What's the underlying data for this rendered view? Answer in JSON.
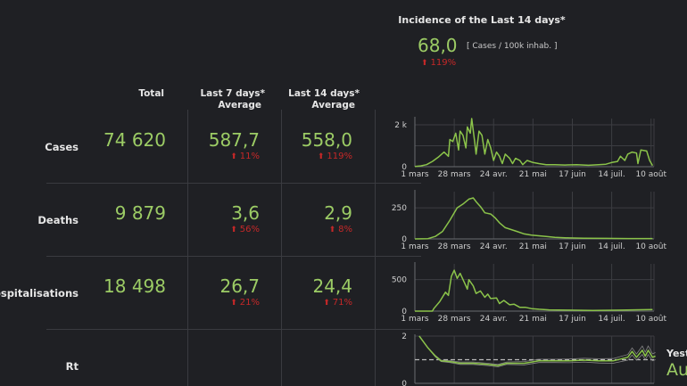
{
  "incidence": {
    "title": "Incidence of the Last 14 days*",
    "value": "68,0",
    "unit": "[ Cases / 100k inhab. ]",
    "change": "119%",
    "change_icon": "arrow-up-icon"
  },
  "headers": {
    "total": "Total",
    "last7_l1": "Last 7 days*",
    "last7_l2": "Average",
    "last14_l1": "Last 14 days*",
    "last14_l2": "Average"
  },
  "rows": [
    {
      "label": "Cases",
      "total": "74 620",
      "avg7": "587,7",
      "chg7": "11%",
      "avg14": "558,0",
      "chg14": "119%"
    },
    {
      "label": "Deaths",
      "total": "9 879",
      "avg7": "3,6",
      "chg7": "56%",
      "avg14": "2,9",
      "chg14": "8%"
    },
    {
      "label": "Hospitalisations",
      "total": "18 498",
      "avg7": "26,7",
      "chg7": "21%",
      "avg14": "24,4",
      "chg14": "71%"
    },
    {
      "label": "Rt"
    }
  ],
  "rt_side": {
    "label": "Yeste",
    "value": "Au"
  },
  "colors": {
    "background": "#1f2024",
    "value_green": "#9ccc65",
    "change_red": "#c62828",
    "line_green": "#8bc34a"
  },
  "chart_data": [
    {
      "type": "line",
      "id": "cases",
      "x_ticks": [
        "1 mars",
        "28 mars",
        "24 avr.",
        "21 mai",
        "17 juin",
        "14 juil.",
        "10 août"
      ],
      "y_ticks": [
        {
          "v": 0,
          "label": "0"
        },
        {
          "v": 2000,
          "label": "2 k"
        }
      ],
      "ylim": [
        0,
        2300
      ],
      "grid": true,
      "x": [
        "03-01",
        "03-05",
        "03-09",
        "03-13",
        "03-17",
        "03-21",
        "03-24",
        "03-25",
        "03-27",
        "03-29",
        "03-31",
        "04-01",
        "04-03",
        "04-05",
        "04-06",
        "04-08",
        "04-09",
        "04-11",
        "04-12",
        "04-14",
        "04-16",
        "04-18",
        "04-20",
        "04-22",
        "04-24",
        "04-26",
        "04-28",
        "04-30",
        "05-02",
        "05-05",
        "05-07",
        "05-09",
        "05-12",
        "05-14",
        "05-17",
        "05-21",
        "05-25",
        "05-30",
        "06-05",
        "06-12",
        "06-20",
        "06-28",
        "07-05",
        "07-10",
        "07-14",
        "07-18",
        "07-20",
        "07-23",
        "07-25",
        "07-28",
        "07-31",
        "08-01",
        "08-03",
        "08-07",
        "08-09",
        "08-11"
      ],
      "values": [
        10,
        40,
        100,
        250,
        450,
        700,
        500,
        1300,
        1200,
        1600,
        800,
        1700,
        1500,
        900,
        1900,
        1600,
        2300,
        1200,
        600,
        1700,
        1500,
        600,
        1300,
        900,
        300,
        700,
        500,
        150,
        600,
        400,
        150,
        400,
        300,
        100,
        300,
        200,
        150,
        100,
        100,
        80,
        100,
        70,
        100,
        120,
        200,
        250,
        500,
        300,
        600,
        700,
        650,
        150,
        800,
        750,
        300,
        50
      ]
    },
    {
      "type": "line",
      "id": "deaths",
      "x_ticks": [
        "1 mars",
        "28 mars",
        "24 avr.",
        "21 mai",
        "17 juin",
        "14 juil.",
        "10 août"
      ],
      "y_ticks": [
        {
          "v": 0,
          "label": "0"
        },
        {
          "v": 250,
          "label": "250"
        }
      ],
      "ylim": [
        0,
        380
      ],
      "grid": true,
      "x": [
        "03-01",
        "03-10",
        "03-15",
        "03-20",
        "03-25",
        "03-30",
        "04-03",
        "04-07",
        "04-10",
        "04-12",
        "04-15",
        "04-18",
        "04-22",
        "04-25",
        "04-28",
        "05-02",
        "05-06",
        "05-10",
        "05-15",
        "05-20",
        "05-25",
        "05-30",
        "06-05",
        "06-15",
        "06-25",
        "07-10",
        "07-25",
        "08-11"
      ],
      "values": [
        0,
        2,
        20,
        60,
        150,
        250,
        280,
        320,
        330,
        300,
        260,
        210,
        200,
        170,
        130,
        90,
        75,
        60,
        40,
        30,
        25,
        20,
        12,
        8,
        6,
        4,
        3,
        3
      ]
    },
    {
      "type": "line",
      "id": "hospitalisations",
      "x_ticks": [
        "1 mars",
        "28 mars",
        "24 avr.",
        "21 mai",
        "17 juin",
        "14 juil.",
        "10 août"
      ],
      "y_ticks": [
        {
          "v": 0,
          "label": "0"
        },
        {
          "v": 500,
          "label": "500"
        }
      ],
      "ylim": [
        0,
        750
      ],
      "grid": true,
      "x": [
        "03-01",
        "03-13",
        "03-14",
        "03-18",
        "03-22",
        "03-24",
        "03-26",
        "03-28",
        "03-30",
        "04-01",
        "04-04",
        "04-06",
        "04-07",
        "04-10",
        "04-12",
        "04-15",
        "04-18",
        "04-20",
        "04-22",
        "04-26",
        "04-28",
        "05-01",
        "05-05",
        "05-08",
        "05-12",
        "05-16",
        "05-20",
        "05-25",
        "06-01",
        "06-15",
        "07-01",
        "07-20",
        "08-11"
      ],
      "values": [
        0,
        0,
        40,
        150,
        300,
        250,
        550,
        650,
        520,
        600,
        450,
        350,
        500,
        400,
        280,
        320,
        220,
        270,
        200,
        210,
        120,
        170,
        100,
        110,
        60,
        60,
        40,
        30,
        20,
        15,
        12,
        15,
        25
      ]
    },
    {
      "type": "line",
      "id": "rt",
      "y_ticks": [
        {
          "v": 0,
          "label": "0"
        },
        {
          "v": 2,
          "label": "2"
        }
      ],
      "ylim": [
        0,
        2
      ],
      "reference_line": 1,
      "grid": true,
      "x": [
        "03-04",
        "03-10",
        "03-15",
        "03-19",
        "03-25",
        "04-01",
        "04-10",
        "04-20",
        "04-27",
        "05-03",
        "05-15",
        "05-25",
        "06-05",
        "06-15",
        "06-25",
        "07-05",
        "07-15",
        "07-25",
        "07-28",
        "07-31",
        "08-04",
        "08-06",
        "08-08",
        "08-11",
        "08-13"
      ],
      "values": [
        2.0,
        1.5,
        1.15,
        0.95,
        0.92,
        0.85,
        0.85,
        0.8,
        0.75,
        0.85,
        0.85,
        0.95,
        0.95,
        0.95,
        0.98,
        0.95,
        0.95,
        1.1,
        1.35,
        1.1,
        1.4,
        1.15,
        1.4,
        1.1,
        1.15
      ],
      "lower": [
        2.0,
        1.5,
        1.12,
        0.92,
        0.88,
        0.8,
        0.8,
        0.75,
        0.7,
        0.8,
        0.78,
        0.88,
        0.88,
        0.87,
        0.9,
        0.86,
        0.85,
        0.98,
        1.2,
        0.98,
        1.22,
        1.0,
        1.22,
        0.95,
        1.0
      ],
      "upper": [
        2.0,
        1.5,
        1.18,
        0.98,
        0.96,
        0.9,
        0.9,
        0.85,
        0.8,
        0.9,
        0.92,
        1.02,
        1.02,
        1.03,
        1.06,
        1.04,
        1.05,
        1.22,
        1.5,
        1.24,
        1.58,
        1.32,
        1.58,
        1.25,
        1.3
      ]
    }
  ]
}
